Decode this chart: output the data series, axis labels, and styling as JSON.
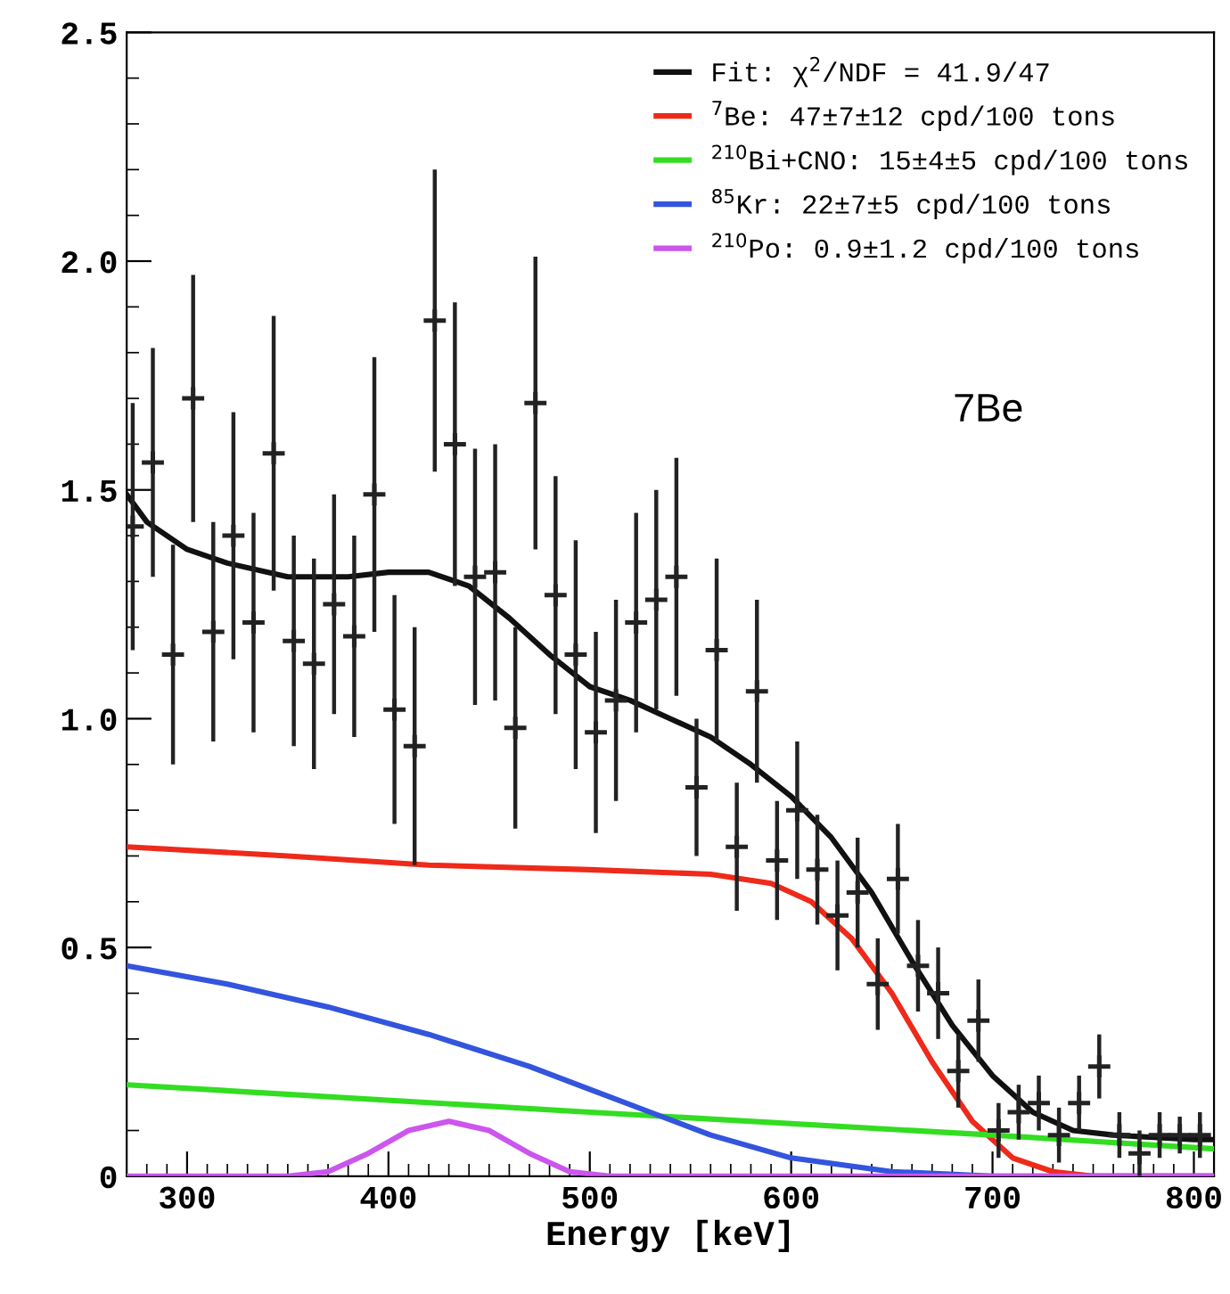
{
  "chart_data": {
    "type": "line",
    "xlabel": "Energy [keV]",
    "xlim": [
      270,
      810
    ],
    "ylim": [
      0,
      2.5
    ],
    "xticks": [
      300,
      400,
      500,
      600,
      700,
      800
    ],
    "yticks": [
      0,
      0.5,
      {
        "value": 1,
        "label": "1.0"
      },
      1.5,
      {
        "value": 2,
        "label": "2.0"
      },
      2.5
    ],
    "grid": false,
    "legend": "top right",
    "line_style": "solid",
    "annotations": [
      "7Be"
    ],
    "series": [
      {
        "type": "scatter",
        "marker": "cross",
        "color": "#222222",
        "x": [
          273,
          283,
          293,
          303,
          313,
          323,
          333,
          343,
          353,
          363,
          373,
          383,
          393,
          403,
          413,
          423,
          433,
          443,
          453,
          463,
          473,
          483,
          493,
          503,
          513,
          523,
          533,
          543,
          553,
          563,
          573,
          583,
          593,
          603,
          613,
          623,
          633,
          643,
          653,
          663,
          673,
          683,
          693,
          703,
          713,
          723,
          733,
          743,
          753,
          763,
          773,
          783,
          793,
          803
        ],
        "values": [
          1.42,
          1.56,
          1.14,
          1.7,
          1.19,
          1.4,
          1.21,
          1.58,
          1.17,
          1.12,
          1.25,
          1.18,
          1.49,
          1.02,
          0.94,
          1.87,
          1.6,
          1.31,
          1.32,
          0.98,
          1.69,
          1.27,
          1.14,
          0.97,
          1.04,
          1.21,
          1.26,
          1.31,
          0.85,
          1.15,
          0.72,
          1.06,
          0.69,
          0.8,
          0.67,
          0.57,
          0.62,
          0.42,
          0.65,
          0.46,
          0.4,
          0.23,
          0.34,
          0.1,
          0.14,
          0.16,
          0.09,
          0.16,
          0.24,
          0.09,
          0.05,
          0.09,
          0.09,
          0.09
        ],
        "errors": [
          0.27,
          0.25,
          0.24,
          0.27,
          0.24,
          0.27,
          0.24,
          0.3,
          0.23,
          0.23,
          0.24,
          0.22,
          0.3,
          0.25,
          0.26,
          0.33,
          0.31,
          0.28,
          0.28,
          0.22,
          0.32,
          0.26,
          0.25,
          0.22,
          0.22,
          0.24,
          0.24,
          0.26,
          0.15,
          0.2,
          0.14,
          0.2,
          0.13,
          0.15,
          0.12,
          0.12,
          0.12,
          0.1,
          0.12,
          0.1,
          0.1,
          0.08,
          0.09,
          0.06,
          0.06,
          0.06,
          0.06,
          0.06,
          0.07,
          0.05,
          0.05,
          0.05,
          0.04,
          0.05
        ]
      },
      {
        "name": "Fit: χ$^{2}$/NDF = 41.9/47",
        "color": "#111111",
        "x": [
          270,
          280,
          300,
          320,
          350,
          380,
          400,
          420,
          440,
          460,
          480,
          500,
          520,
          540,
          560,
          580,
          600,
          620,
          640,
          660,
          680,
          700,
          720,
          740,
          760,
          780,
          800,
          810
        ],
        "values": [
          1.49,
          1.43,
          1.37,
          1.34,
          1.31,
          1.31,
          1.32,
          1.32,
          1.29,
          1.22,
          1.14,
          1.07,
          1.04,
          1.0,
          0.96,
          0.9,
          0.83,
          0.74,
          0.62,
          0.47,
          0.33,
          0.22,
          0.14,
          0.1,
          0.09,
          0.085,
          0.08,
          0.08
        ]
      },
      {
        "name": "$^{7}$Be: 47±7±12 cpd/100 tons",
        "color": "#ee2a1a",
        "x": [
          270,
          350,
          420,
          500,
          560,
          590,
          610,
          630,
          650,
          670,
          690,
          710,
          730,
          750,
          810
        ],
        "values": [
          0.72,
          0.7,
          0.68,
          0.67,
          0.66,
          0.64,
          0.6,
          0.52,
          0.4,
          0.25,
          0.12,
          0.04,
          0.01,
          0,
          0
        ]
      },
      {
        "name": "$^{210}$Bi+CNO: 15±4±5 cpd/100 tons",
        "color": "#33dd22",
        "x": [
          270,
          500,
          700,
          810
        ],
        "values": [
          0.2,
          0.14,
          0.09,
          0.06
        ]
      },
      {
        "name": "$^{85}$Kr: 22±7±5 cpd/100 tons",
        "color": "#3355dd",
        "x": [
          270,
          320,
          370,
          420,
          470,
          500,
          530,
          560,
          600,
          650,
          700,
          810
        ],
        "values": [
          0.46,
          0.42,
          0.37,
          0.31,
          0.24,
          0.19,
          0.14,
          0.09,
          0.04,
          0.01,
          0,
          0
        ]
      },
      {
        "name": "$^{210}$Po: 0.9±1.2 cpd/100 tons",
        "color": "#cc55ee",
        "x": [
          270,
          350,
          370,
          390,
          410,
          430,
          450,
          470,
          490,
          510,
          810
        ],
        "values": [
          0,
          0,
          0.01,
          0.05,
          0.1,
          0.12,
          0.1,
          0.05,
          0.01,
          0,
          0
        ]
      }
    ]
  }
}
